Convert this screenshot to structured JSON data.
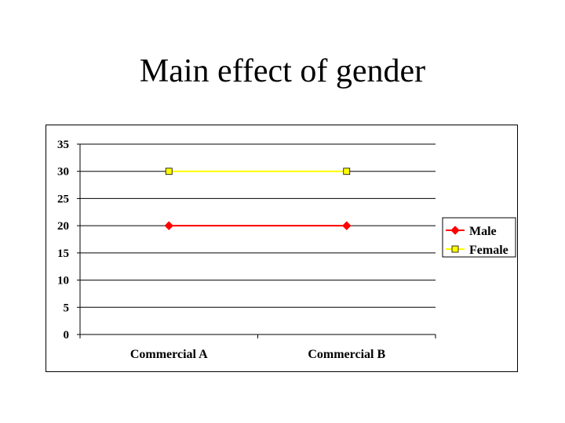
{
  "slide": {
    "title": "Main effect of gender"
  },
  "chart_data": {
    "type": "line",
    "categories": [
      "Commercial A",
      "Commercial B"
    ],
    "series": [
      {
        "name": "Male",
        "values": [
          20,
          20
        ],
        "color": "#ff0000",
        "marker": "diamond",
        "marker_color": "#ff0000"
      },
      {
        "name": "Female",
        "values": [
          30,
          30
        ],
        "color": "#ffff00",
        "marker": "square",
        "marker_color": "#ffff00"
      }
    ],
    "title": "",
    "xlabel": "",
    "ylabel": "",
    "ylim": [
      0,
      35
    ],
    "yticks": [
      0,
      5,
      10,
      15,
      20,
      25,
      30,
      35
    ],
    "grid": true,
    "legend": "right"
  }
}
